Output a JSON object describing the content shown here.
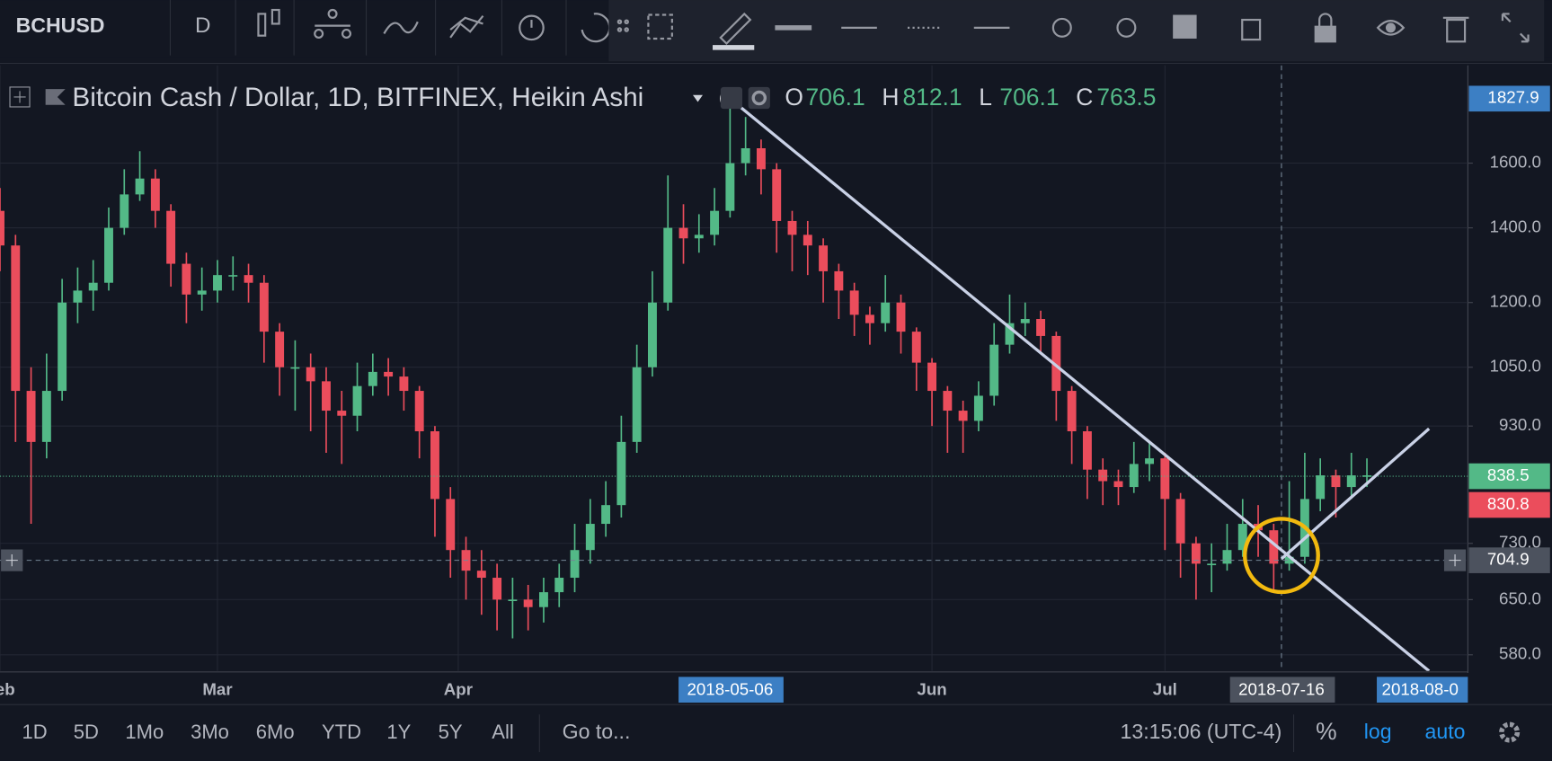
{
  "header": {
    "symbol": "BCHUSD",
    "interval": "D"
  },
  "chart_data": {
    "type": "candlestick",
    "title": "Bitcoin Cash / Dollar, 1D, BITFINEX, Heikin Ashi",
    "ohlc_legend": [
      {
        "label": "O",
        "value": 706.1
      },
      {
        "label": "H",
        "value": 812.1
      },
      {
        "label": "L",
        "value": 706.1
      },
      {
        "label": "C",
        "value": 763.5
      }
    ],
    "x": [
      "2018-02-01",
      "2018-02-03",
      "2018-02-05",
      "2018-02-07",
      "2018-02-09",
      "2018-02-11",
      "2018-02-13",
      "2018-02-15",
      "2018-02-17",
      "2018-02-19",
      "2018-02-21",
      "2018-02-23",
      "2018-02-25",
      "2018-02-27",
      "2018-03-01",
      "2018-03-03",
      "2018-03-05",
      "2018-03-07",
      "2018-03-09",
      "2018-03-11",
      "2018-03-13",
      "2018-03-15",
      "2018-03-17",
      "2018-03-19",
      "2018-03-21",
      "2018-03-23",
      "2018-03-25",
      "2018-03-27",
      "2018-03-29",
      "2018-03-31",
      "2018-04-02",
      "2018-04-04",
      "2018-04-06",
      "2018-04-08",
      "2018-04-10",
      "2018-04-12",
      "2018-04-14",
      "2018-04-16",
      "2018-04-18",
      "2018-04-20",
      "2018-04-22",
      "2018-04-24",
      "2018-04-26",
      "2018-04-28",
      "2018-04-30",
      "2018-05-02",
      "2018-05-04",
      "2018-05-06",
      "2018-05-08",
      "2018-05-10",
      "2018-05-12",
      "2018-05-14",
      "2018-05-16",
      "2018-05-18",
      "2018-05-20",
      "2018-05-22",
      "2018-05-24",
      "2018-05-26",
      "2018-05-28",
      "2018-05-30",
      "2018-06-01",
      "2018-06-03",
      "2018-06-05",
      "2018-06-07",
      "2018-06-09",
      "2018-06-11",
      "2018-06-13",
      "2018-06-15",
      "2018-06-17",
      "2018-06-19",
      "2018-06-21",
      "2018-06-23",
      "2018-06-25",
      "2018-06-27",
      "2018-06-29",
      "2018-07-01",
      "2018-07-03",
      "2018-07-05",
      "2018-07-07",
      "2018-07-09",
      "2018-07-11",
      "2018-07-13",
      "2018-07-15",
      "2018-07-17",
      "2018-07-19",
      "2018-07-21",
      "2018-07-23",
      "2018-07-25",
      "2018-07-27"
    ],
    "open": [
      1450,
      1350,
      1000,
      900,
      1000,
      1200,
      1230,
      1250,
      1400,
      1500,
      1550,
      1450,
      1300,
      1220,
      1230,
      1270,
      1270,
      1250,
      1130,
      1050,
      1050,
      1020,
      960,
      950,
      1010,
      1040,
      1030,
      1000,
      920,
      800,
      720,
      690,
      680,
      650,
      650,
      640,
      660,
      680,
      720,
      760,
      790,
      900,
      1050,
      1200,
      1400,
      1370,
      1380,
      1450,
      1600,
      1650,
      1580,
      1420,
      1380,
      1350,
      1280,
      1230,
      1170,
      1150,
      1200,
      1130,
      1060,
      1000,
      960,
      940,
      990,
      1100,
      1150,
      1160,
      1120,
      1000,
      920,
      850,
      830,
      820,
      860,
      870,
      800,
      730,
      700,
      700,
      720,
      760,
      750,
      700,
      710,
      800,
      840,
      820,
      840
    ],
    "high": [
      1520,
      1380,
      1050,
      1080,
      1260,
      1290,
      1310,
      1460,
      1580,
      1640,
      1580,
      1470,
      1330,
      1290,
      1310,
      1320,
      1300,
      1270,
      1150,
      1110,
      1080,
      1050,
      1000,
      1060,
      1080,
      1070,
      1050,
      1010,
      930,
      820,
      740,
      720,
      700,
      680,
      670,
      680,
      700,
      760,
      800,
      830,
      950,
      1100,
      1280,
      1560,
      1470,
      1440,
      1520,
      1827.9,
      1760,
      1680,
      1600,
      1450,
      1420,
      1370,
      1300,
      1250,
      1190,
      1270,
      1220,
      1140,
      1070,
      1010,
      980,
      1020,
      1150,
      1220,
      1200,
      1180,
      1130,
      1010,
      930,
      870,
      850,
      900,
      900,
      880,
      810,
      740,
      730,
      760,
      800,
      790,
      760,
      830,
      880,
      870,
      850,
      880,
      870
    ],
    "low": [
      1280,
      900,
      760,
      870,
      980,
      1150,
      1180,
      1230,
      1380,
      1480,
      1400,
      1240,
      1150,
      1180,
      1200,
      1230,
      1200,
      1060,
      990,
      960,
      920,
      880,
      860,
      920,
      990,
      990,
      960,
      870,
      740,
      680,
      650,
      630,
      610,
      600,
      610,
      620,
      640,
      660,
      700,
      740,
      770,
      880,
      1030,
      1180,
      1300,
      1330,
      1350,
      1430,
      1560,
      1500,
      1330,
      1280,
      1270,
      1200,
      1160,
      1120,
      1100,
      1130,
      1080,
      1000,
      930,
      880,
      880,
      920,
      970,
      1080,
      1120,
      1080,
      940,
      860,
      800,
      790,
      790,
      810,
      830,
      720,
      680,
      650,
      660,
      690,
      710,
      710,
      660,
      690,
      700,
      780,
      770,
      800,
      820
    ],
    "close": [
      1350,
      1000,
      900,
      1000,
      1200,
      1230,
      1250,
      1400,
      1500,
      1550,
      1450,
      1300,
      1220,
      1230,
      1270,
      1270,
      1250,
      1130,
      1050,
      1050,
      1020,
      960,
      950,
      1010,
      1040,
      1030,
      1000,
      920,
      800,
      720,
      690,
      680,
      650,
      650,
      640,
      660,
      680,
      720,
      760,
      790,
      900,
      1050,
      1200,
      1400,
      1370,
      1380,
      1450,
      1600,
      1650,
      1580,
      1420,
      1380,
      1350,
      1280,
      1230,
      1170,
      1150,
      1200,
      1130,
      1060,
      1000,
      960,
      940,
      990,
      1100,
      1150,
      1160,
      1120,
      1000,
      920,
      850,
      830,
      820,
      860,
      870,
      800,
      730,
      700,
      700,
      720,
      760,
      750,
      700,
      710,
      800,
      840,
      820,
      840,
      840
    ],
    "up_color": "#53b987",
    "down_color": "#eb4d5c",
    "xlim": [
      "2018-02-01",
      "2018-08-09"
    ],
    "xticks": [
      {
        "value": "2018-02-01",
        "label": "Feb"
      },
      {
        "value": "2018-03-01",
        "label": "Mar"
      },
      {
        "value": "2018-04-01",
        "label": "Apr"
      },
      {
        "value": "2018-06-01",
        "label": "Jun"
      },
      {
        "value": "2018-07-01",
        "label": "Jul"
      }
    ],
    "ylim": [
      561,
      1958
    ],
    "log_scale": true,
    "grid": true,
    "yticks": [
      {
        "value": 580,
        "label": "580.0"
      },
      {
        "value": 650,
        "label": "650.0"
      },
      {
        "value": 730,
        "label": "730.0"
      },
      {
        "value": 930,
        "label": "930.0"
      },
      {
        "value": 1050,
        "label": "1050.0"
      },
      {
        "value": 1200,
        "label": "1200.0"
      },
      {
        "value": 1400,
        "label": "1400.0"
      },
      {
        "value": 1600,
        "label": "1600.0"
      }
    ],
    "drawings": [
      {
        "points": [
          [
            "2018-05-06",
            1827.9
          ],
          [
            "2018-08-04",
            561
          ]
        ],
        "color": "#c9d1e6"
      },
      {
        "points": [
          [
            "2018-07-16",
            707
          ],
          [
            "2018-08-04",
            925
          ]
        ],
        "color": "#c9d1e6"
      }
    ],
    "highlight": {
      "x": "2018-07-16",
      "y": 712,
      "color": "#f2b90f"
    },
    "crosshair": {
      "x": "2018-07-16",
      "y": 704.9
    },
    "price_lines": [
      {
        "value": 838.5,
        "color": "#53b987"
      },
      {
        "value": 830.8,
        "color": "#eb4d5c"
      }
    ],
    "cut_date_label": "2018-08-0"
  },
  "footer": {
    "ranges": [
      "1D",
      "5D",
      "1Mo",
      "3Mo",
      "6Mo",
      "YTD",
      "1Y",
      "5Y",
      "All"
    ],
    "goto": "Go to...",
    "time": "13:15:06 (UTC-4)",
    "percent": "%",
    "log": "log",
    "auto": "auto"
  }
}
